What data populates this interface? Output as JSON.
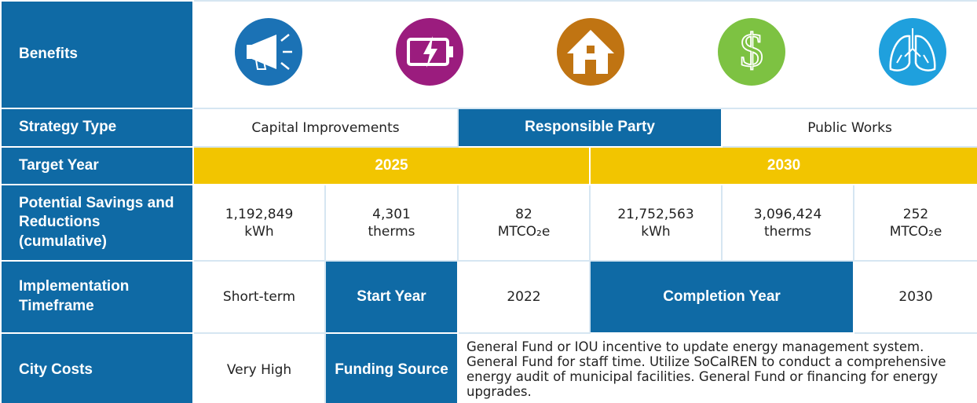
{
  "benefits": {
    "label": "Benefits"
  },
  "strategy_type": {
    "label": "Strategy Type",
    "value": "Capital Improvements",
    "responsible_party_label": "Responsible Party",
    "responsible_party": "Public Works"
  },
  "target_year": {
    "label": "Target Year",
    "years": [
      "2025",
      "2030"
    ]
  },
  "potential_savings": {
    "label": "Potential Savings and Reductions (cumulative)",
    "cells": [
      {
        "amount": "1,192,849",
        "unit": "kWh"
      },
      {
        "amount": "4,301",
        "unit": "therms"
      },
      {
        "amount": "82",
        "unit": "MTCO₂e"
      },
      {
        "amount": "21,752,563",
        "unit": "kWh"
      },
      {
        "amount": "3,096,424",
        "unit": "therms"
      },
      {
        "amount": "252",
        "unit": "MTCO₂e"
      }
    ]
  },
  "implementation": {
    "label": "Implementation Timeframe",
    "value": "Short-term",
    "start_year_label": "Start Year",
    "start_year": "2022",
    "completion_year_label": "Completion Year",
    "completion_year": "2030"
  },
  "city_costs": {
    "label": "City Costs",
    "value": "Very High",
    "funding_source_label": "Funding Source",
    "funding_source": "General Fund or IOU incentive to update energy management system. General Fund for staff time. Utilize SoCalREN to conduct a comprehensive energy audit of municipal facilities. General Fund or financing for energy upgrades."
  }
}
